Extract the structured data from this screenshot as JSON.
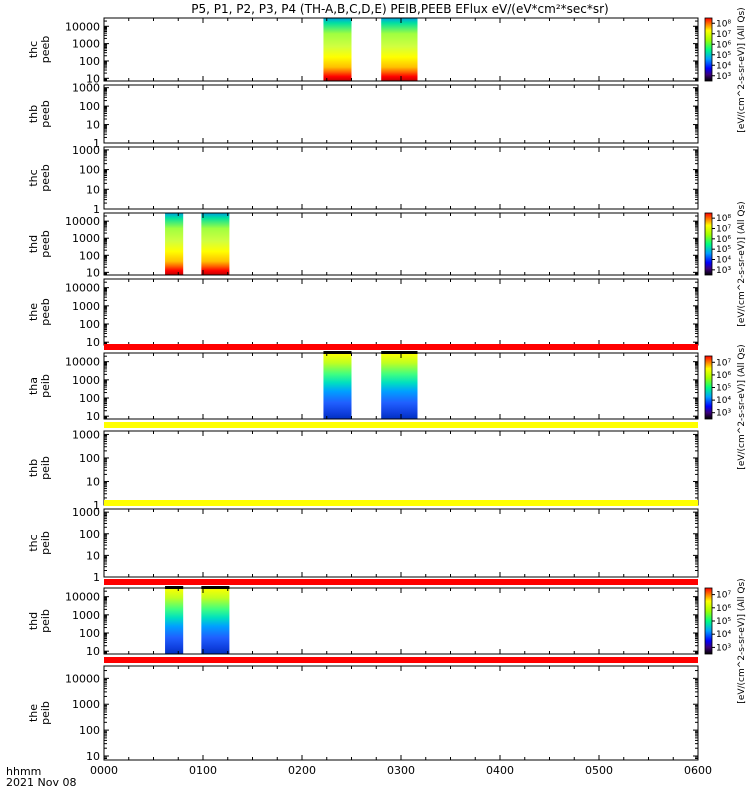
{
  "title": "P5, P1, P2, P3, P4 (TH-A,B,C,D,E) PEIB,PEEB EFlux eV/(eV*cm²*sec*sr)",
  "xaxis": {
    "labels": [
      "0000",
      "0100",
      "0200",
      "0300",
      "0400",
      "0500",
      "0600"
    ],
    "range_hours": [
      0,
      6
    ],
    "corner_label_1": "hhmm",
    "corner_label_2": "2021 Nov 08"
  },
  "colors": {
    "red_line": "#ff0000",
    "yellow_line": "#ffff00"
  },
  "chart_data": {
    "type": "heatmap",
    "panels": [
      {
        "ylabel": [
          "thc",
          "peeb"
        ],
        "yrange": [
          7,
          30000
        ],
        "ticks": [
          "10",
          "100",
          "1000",
          "10000"
        ],
        "blocks": [
          {
            "start": "02:13",
            "end": "02:30",
            "style": "peeb"
          },
          {
            "start": "02:48",
            "end": "03:10",
            "style": "peeb"
          }
        ]
      },
      {
        "ylabel": [
          "thb",
          "peeb"
        ],
        "yrange": [
          1,
          1400
        ],
        "ticks": [
          "1",
          "10",
          "100",
          "1000"
        ],
        "blocks": []
      },
      {
        "ylabel": [
          "thc",
          "peeb"
        ],
        "yrange": [
          1,
          1400
        ],
        "ticks": [
          "1",
          "10",
          "100",
          "1000"
        ],
        "blocks": []
      },
      {
        "ylabel": [
          "thd",
          "peeb"
        ],
        "yrange": [
          7,
          30000
        ],
        "ticks": [
          "10",
          "100",
          "1000",
          "10000"
        ],
        "blocks": [
          {
            "start": "00:37",
            "end": "00:48",
            "style": "peeb"
          },
          {
            "start": "00:59",
            "end": "01:16",
            "style": "peeb"
          }
        ]
      },
      {
        "ylabel": [
          "the",
          "peeb"
        ],
        "yrange": [
          7,
          30000
        ],
        "ticks": [
          "10",
          "100",
          "1000",
          "10000"
        ],
        "blocks": []
      },
      {
        "ylabel": [
          "tha",
          "peib"
        ],
        "yrange": [
          7,
          30000
        ],
        "ticks": [
          "10",
          "100",
          "1000",
          "10000"
        ],
        "blocks": [
          {
            "start": "02:13",
            "end": "02:30",
            "style": "peib"
          },
          {
            "start": "02:48",
            "end": "03:10",
            "style": "peib"
          }
        ]
      },
      {
        "ylabel": [
          "thb",
          "peib"
        ],
        "yrange": [
          1,
          1400
        ],
        "ticks": [
          "1",
          "10",
          "100",
          "1000"
        ],
        "blocks": []
      },
      {
        "ylabel": [
          "thc",
          "peib"
        ],
        "yrange": [
          1,
          1400
        ],
        "ticks": [
          "1",
          "10",
          "100",
          "1000"
        ],
        "blocks": []
      },
      {
        "ylabel": [
          "thd",
          "peib"
        ],
        "yrange": [
          7,
          30000
        ],
        "ticks": [
          "10",
          "100",
          "1000",
          "10000"
        ],
        "blocks": [
          {
            "start": "00:37",
            "end": "00:48",
            "style": "peib"
          },
          {
            "start": "00:59",
            "end": "01:16",
            "style": "peib"
          }
        ]
      },
      {
        "ylabel": [
          "the",
          "peib"
        ],
        "yrange": [
          7,
          30000
        ],
        "ticks": [
          "10",
          "100",
          "1000",
          "10000"
        ],
        "blocks": []
      }
    ],
    "colorbars": [
      {
        "label": "[eV/(cm^2-s-sr-eV)] (All Qs)",
        "ticks": [
          "10^3",
          "10^4",
          "10^5",
          "10^6",
          "10^7",
          "10^8"
        ]
      },
      {
        "label": "[eV/(cm^2-s-sr-eV)] (All Qs)",
        "ticks": [
          "10^3",
          "10^4",
          "10^5",
          "10^6",
          "10^7",
          "10^8"
        ]
      },
      {
        "label": "[eV/(cm^2-s-sr-eV)] (All Qs)",
        "ticks": [
          "10^3",
          "10^4",
          "10^5",
          "10^6",
          "10^7"
        ]
      },
      {
        "label": "[eV/(cm^2-s-sr-eV)] (All Qs)",
        "ticks": [
          "10^3",
          "10^4",
          "10^5",
          "10^6",
          "10^7"
        ]
      }
    ]
  }
}
